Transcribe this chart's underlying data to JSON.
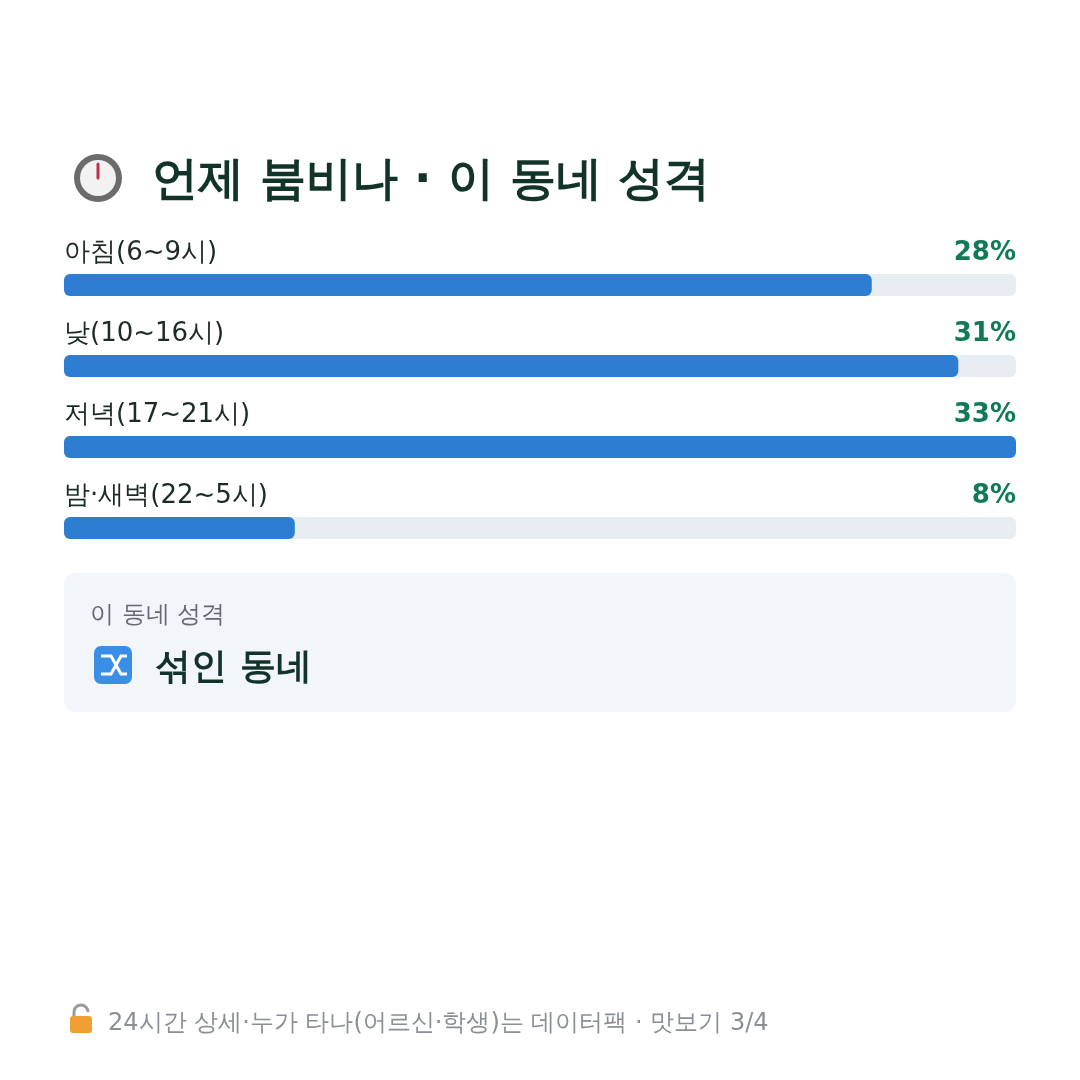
{
  "chart_data": {
    "type": "bar",
    "orientation": "horizontal",
    "title": "언제 붐비나 · 이 동네 성격",
    "categories": [
      "아침(6~9시)",
      "낮(10~16시)",
      "저녁(17~21시)",
      "밤·새벽(22~5시)"
    ],
    "values": [
      28,
      31,
      33,
      8
    ],
    "value_labels": [
      "28%",
      "31%",
      "33%",
      "8%"
    ],
    "color": "#2d7dd2",
    "annotations": [
      "이 동네 성격",
      "섞인 동네",
      "24시간 상세·누가 타나(어르신·학생)는 데이터팩 · 맛보기 3/4"
    ]
  }
}
